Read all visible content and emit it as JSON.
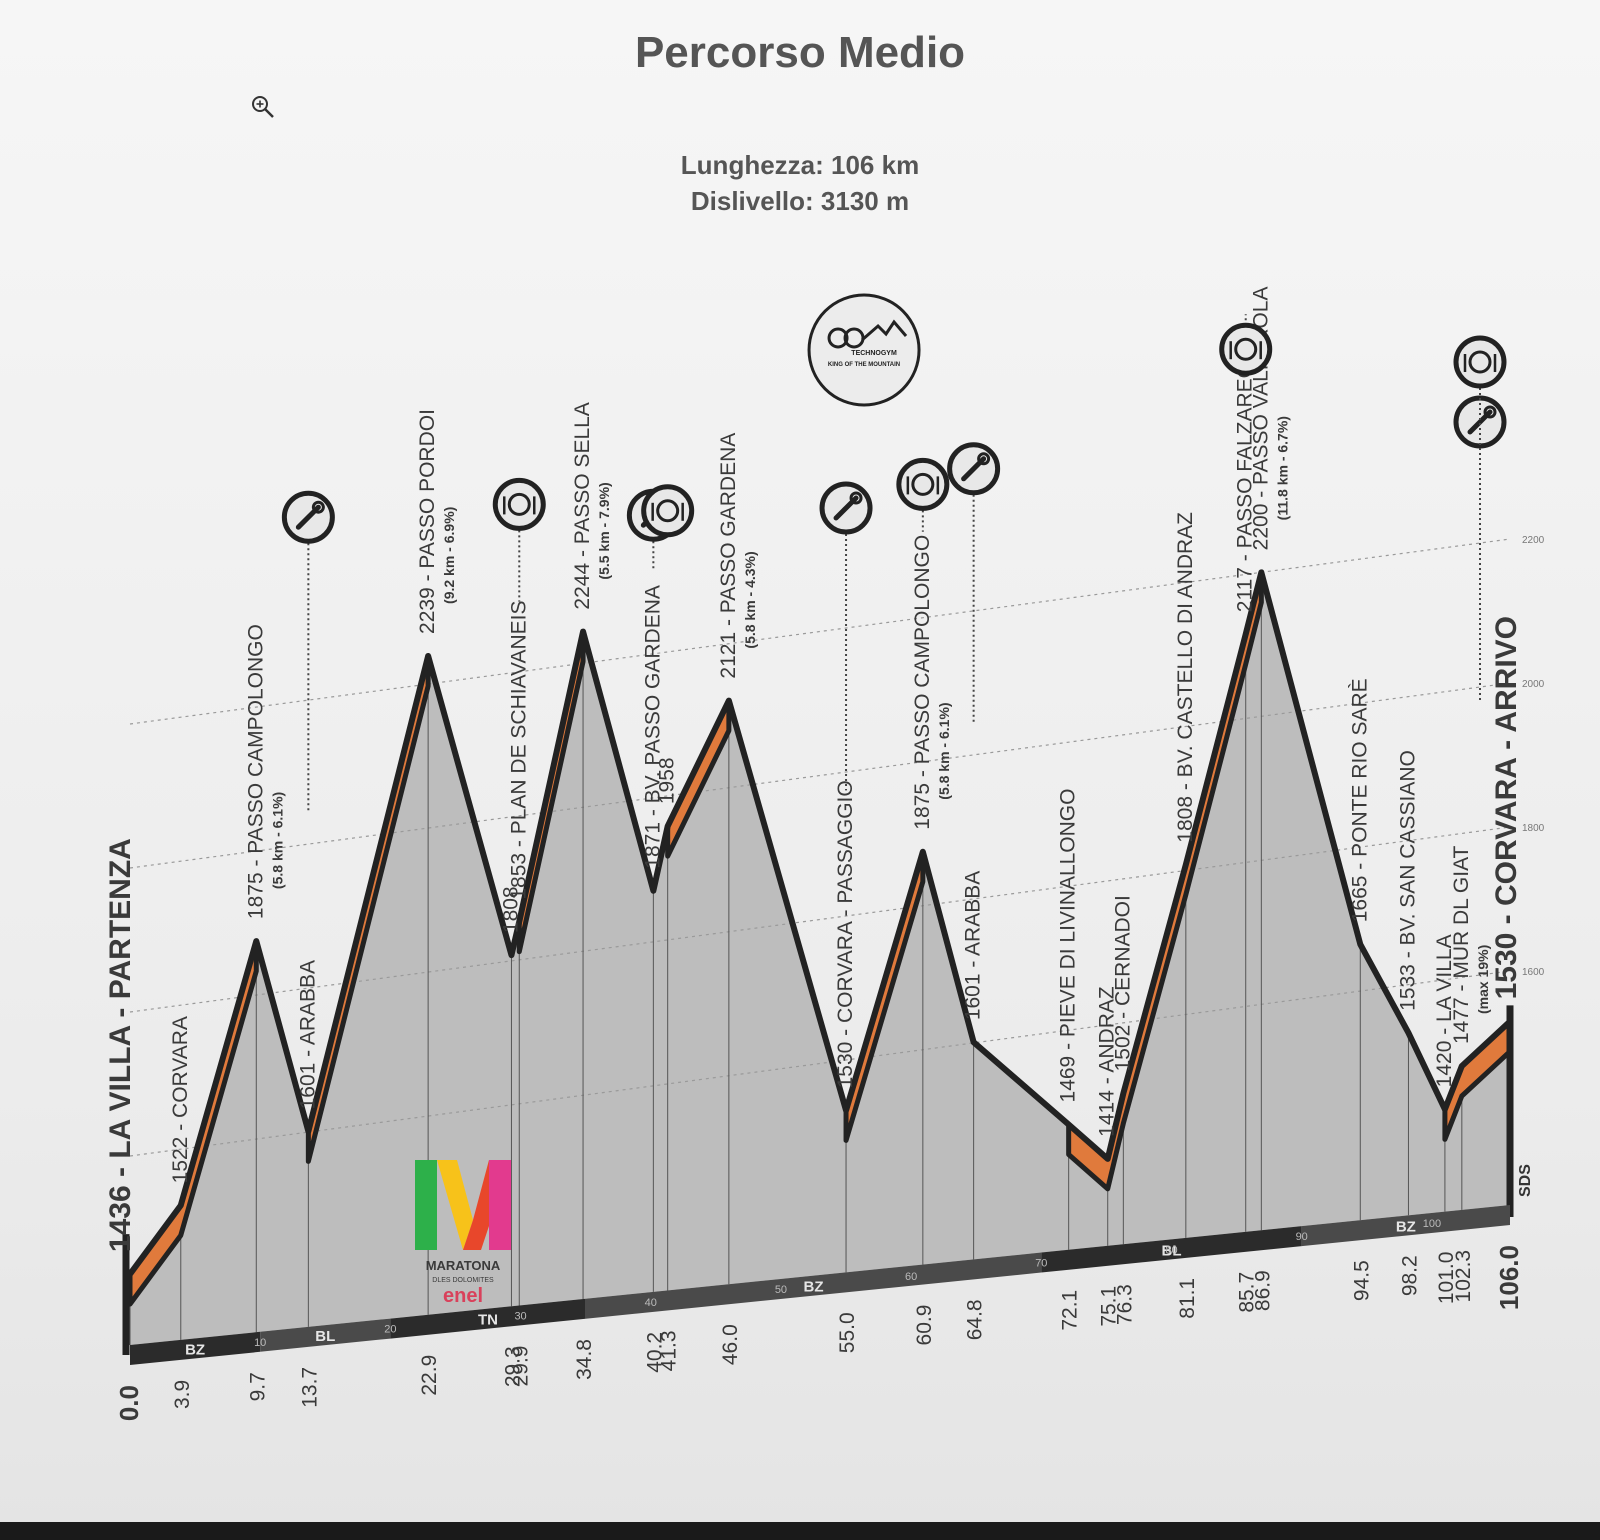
{
  "header": {
    "title": "Percorso Medio",
    "length": "Lunghezza: 106 km",
    "climb": "Dislivello: 3130 m"
  },
  "logo": {
    "text": "MARATONA",
    "subtext": "DLES DOLOMITES",
    "sponsor": "enel"
  },
  "colors": {
    "climb": "#e07a3c",
    "profile": "#bdbdbd",
    "outline": "#222222",
    "text": "#3a3a3a"
  },
  "chart_data": {
    "type": "area",
    "title": "Percorso Medio",
    "xlabel": "",
    "ylabel": "",
    "xlim": [
      0,
      106
    ],
    "ylim": [
      1200,
      2200
    ],
    "y_ticks": [
      1600,
      1800,
      2000,
      2200
    ],
    "profile": [
      {
        "km": 0.0,
        "alt": 1436
      },
      {
        "km": 3.9,
        "alt": 1522
      },
      {
        "km": 9.7,
        "alt": 1875
      },
      {
        "km": 13.7,
        "alt": 1601
      },
      {
        "km": 22.9,
        "alt": 2239
      },
      {
        "km": 29.3,
        "alt": 1808
      },
      {
        "km": 29.9,
        "alt": 1853
      },
      {
        "km": 34.8,
        "alt": 2244
      },
      {
        "km": 40.2,
        "alt": 1871
      },
      {
        "km": 41.3,
        "alt": 1958
      },
      {
        "km": 46.0,
        "alt": 2121
      },
      {
        "km": 55.0,
        "alt": 1530
      },
      {
        "km": 60.9,
        "alt": 1875
      },
      {
        "km": 64.8,
        "alt": 1601
      },
      {
        "km": 72.1,
        "alt": 1469
      },
      {
        "km": 75.1,
        "alt": 1414
      },
      {
        "km": 76.3,
        "alt": 1502
      },
      {
        "km": 81.1,
        "alt": 1808
      },
      {
        "km": 85.7,
        "alt": 2117
      },
      {
        "km": 86.9,
        "alt": 2200
      },
      {
        "km": 94.5,
        "alt": 1665
      },
      {
        "km": 98.2,
        "alt": 1533
      },
      {
        "km": 101.0,
        "alt": 1420
      },
      {
        "km": 102.3,
        "alt": 1477
      },
      {
        "km": 106.0,
        "alt": 1530
      }
    ],
    "climbs": [
      [
        0.0,
        9.7
      ],
      [
        13.7,
        22.9
      ],
      [
        29.9,
        34.8
      ],
      [
        41.3,
        46.0
      ],
      [
        55.0,
        60.9
      ],
      [
        72.1,
        86.9
      ],
      [
        101.0,
        106.0
      ]
    ],
    "km_labels": [
      "0.0",
      "3.9",
      "9.7",
      "13.7",
      "22.9",
      "29.3",
      "29.9",
      "34.8",
      "40.2",
      "41.3",
      "46.0",
      "55.0",
      "60.9",
      "64.8",
      "72.1",
      "75.1",
      "76.3",
      "81.1",
      "85.7",
      "86.9",
      "94.5",
      "98.2",
      "101.0",
      "102.3",
      "106.0"
    ],
    "waypoints": [
      {
        "km": 0.0,
        "text": "1436 - LA VILLA - PARTENZA",
        "bold": true
      },
      {
        "km": 3.9,
        "text": "1522 - CORVARA"
      },
      {
        "km": 9.7,
        "text": "1875 - PASSO CAMPOLONGO",
        "note": "(5.8 km - 6.1%)"
      },
      {
        "km": 13.7,
        "text": "1601 - ARABBA"
      },
      {
        "km": 22.9,
        "text": "2239 - PASSO PORDOI",
        "note": "(9.2 km - 6.9%)"
      },
      {
        "km": 29.3,
        "text": "1808"
      },
      {
        "km": 29.9,
        "text": "1853 - PLAN DE SCHIAVANEIS"
      },
      {
        "km": 34.8,
        "text": "2244 - PASSO SELLA",
        "note": "(5.5 km - 7.9%)"
      },
      {
        "km": 40.2,
        "text": "1871 - BV. PASSO GARDENA"
      },
      {
        "km": 41.3,
        "text": "1958"
      },
      {
        "km": 46.0,
        "text": "2121 - PASSO GARDENA",
        "note": "(5.8 km - 4.3%)"
      },
      {
        "km": 55.0,
        "text": "1530 - CORVARA - PASSAGGIO"
      },
      {
        "km": 60.9,
        "text": "1875 - PASSO CAMPOLONGO",
        "note": "(5.8 km - 6.1%)"
      },
      {
        "km": 64.8,
        "text": "1601 - ARABBA"
      },
      {
        "km": 72.1,
        "text": "1469 - PIEVE DI LIVINALLONGO"
      },
      {
        "km": 75.1,
        "text": "1414 - ANDRAZ"
      },
      {
        "km": 76.3,
        "text": "1502 - CERNADOI"
      },
      {
        "km": 81.1,
        "text": "1808 - BV. CASTELLO DI ANDRAZ"
      },
      {
        "km": 85.7,
        "text": "2117 - PASSO FALZAREGO"
      },
      {
        "km": 86.9,
        "text": "2200 - PASSO VALPAROLA",
        "note": "(11.8 km - 6.7%)"
      },
      {
        "km": 94.5,
        "text": "1665 - PONTE RIO SARÈ"
      },
      {
        "km": 98.2,
        "text": "1533 - BV. SAN CASSIANO"
      },
      {
        "km": 101.0,
        "text": "1420 - LA VILLA"
      },
      {
        "km": 102.3,
        "text": "1477 - MUR DL GIAT",
        "note": "(max 19%)"
      },
      {
        "km": 106.0,
        "text": "1530 - CORVARA - ARRIVO",
        "bold": true
      }
    ],
    "regions": [
      {
        "from": 0,
        "to": 10,
        "label": "BZ"
      },
      {
        "from": 10,
        "to": 20,
        "label": "BL"
      },
      {
        "from": 20,
        "to": 35,
        "label": "TN"
      },
      {
        "from": 35,
        "to": 70,
        "label": "BZ"
      },
      {
        "from": 70,
        "to": 90,
        "label": "BL"
      },
      {
        "from": 90,
        "to": 106,
        "label": "BZ"
      }
    ],
    "km_ticks": [
      10,
      20,
      30,
      40,
      50,
      60,
      70,
      80,
      90,
      100
    ],
    "service_points": [
      {
        "km": 13.7,
        "icon": "wrench-icon"
      },
      {
        "km": 29.9,
        "icon": "food-icon"
      },
      {
        "km": 40.2,
        "icon": "wrench-icon"
      },
      {
        "km": 41.3,
        "icon": "food-icon"
      },
      {
        "km": 55.0,
        "icon": "wrench-icon"
      },
      {
        "km": 60.9,
        "icon": "food-icon"
      },
      {
        "km": 64.8,
        "icon": "wrench-icon"
      },
      {
        "km": 85.7,
        "icon": "food-icon"
      },
      {
        "km": 106.0,
        "icon": "wrench-icon"
      },
      {
        "km": 106.0,
        "icon": "food-icon"
      }
    ],
    "badge": {
      "km": 55.0,
      "line1": "TECHNOGYM",
      "line2": "KING OF THE MOUNTAIN"
    },
    "finish_mark": "SDS"
  }
}
